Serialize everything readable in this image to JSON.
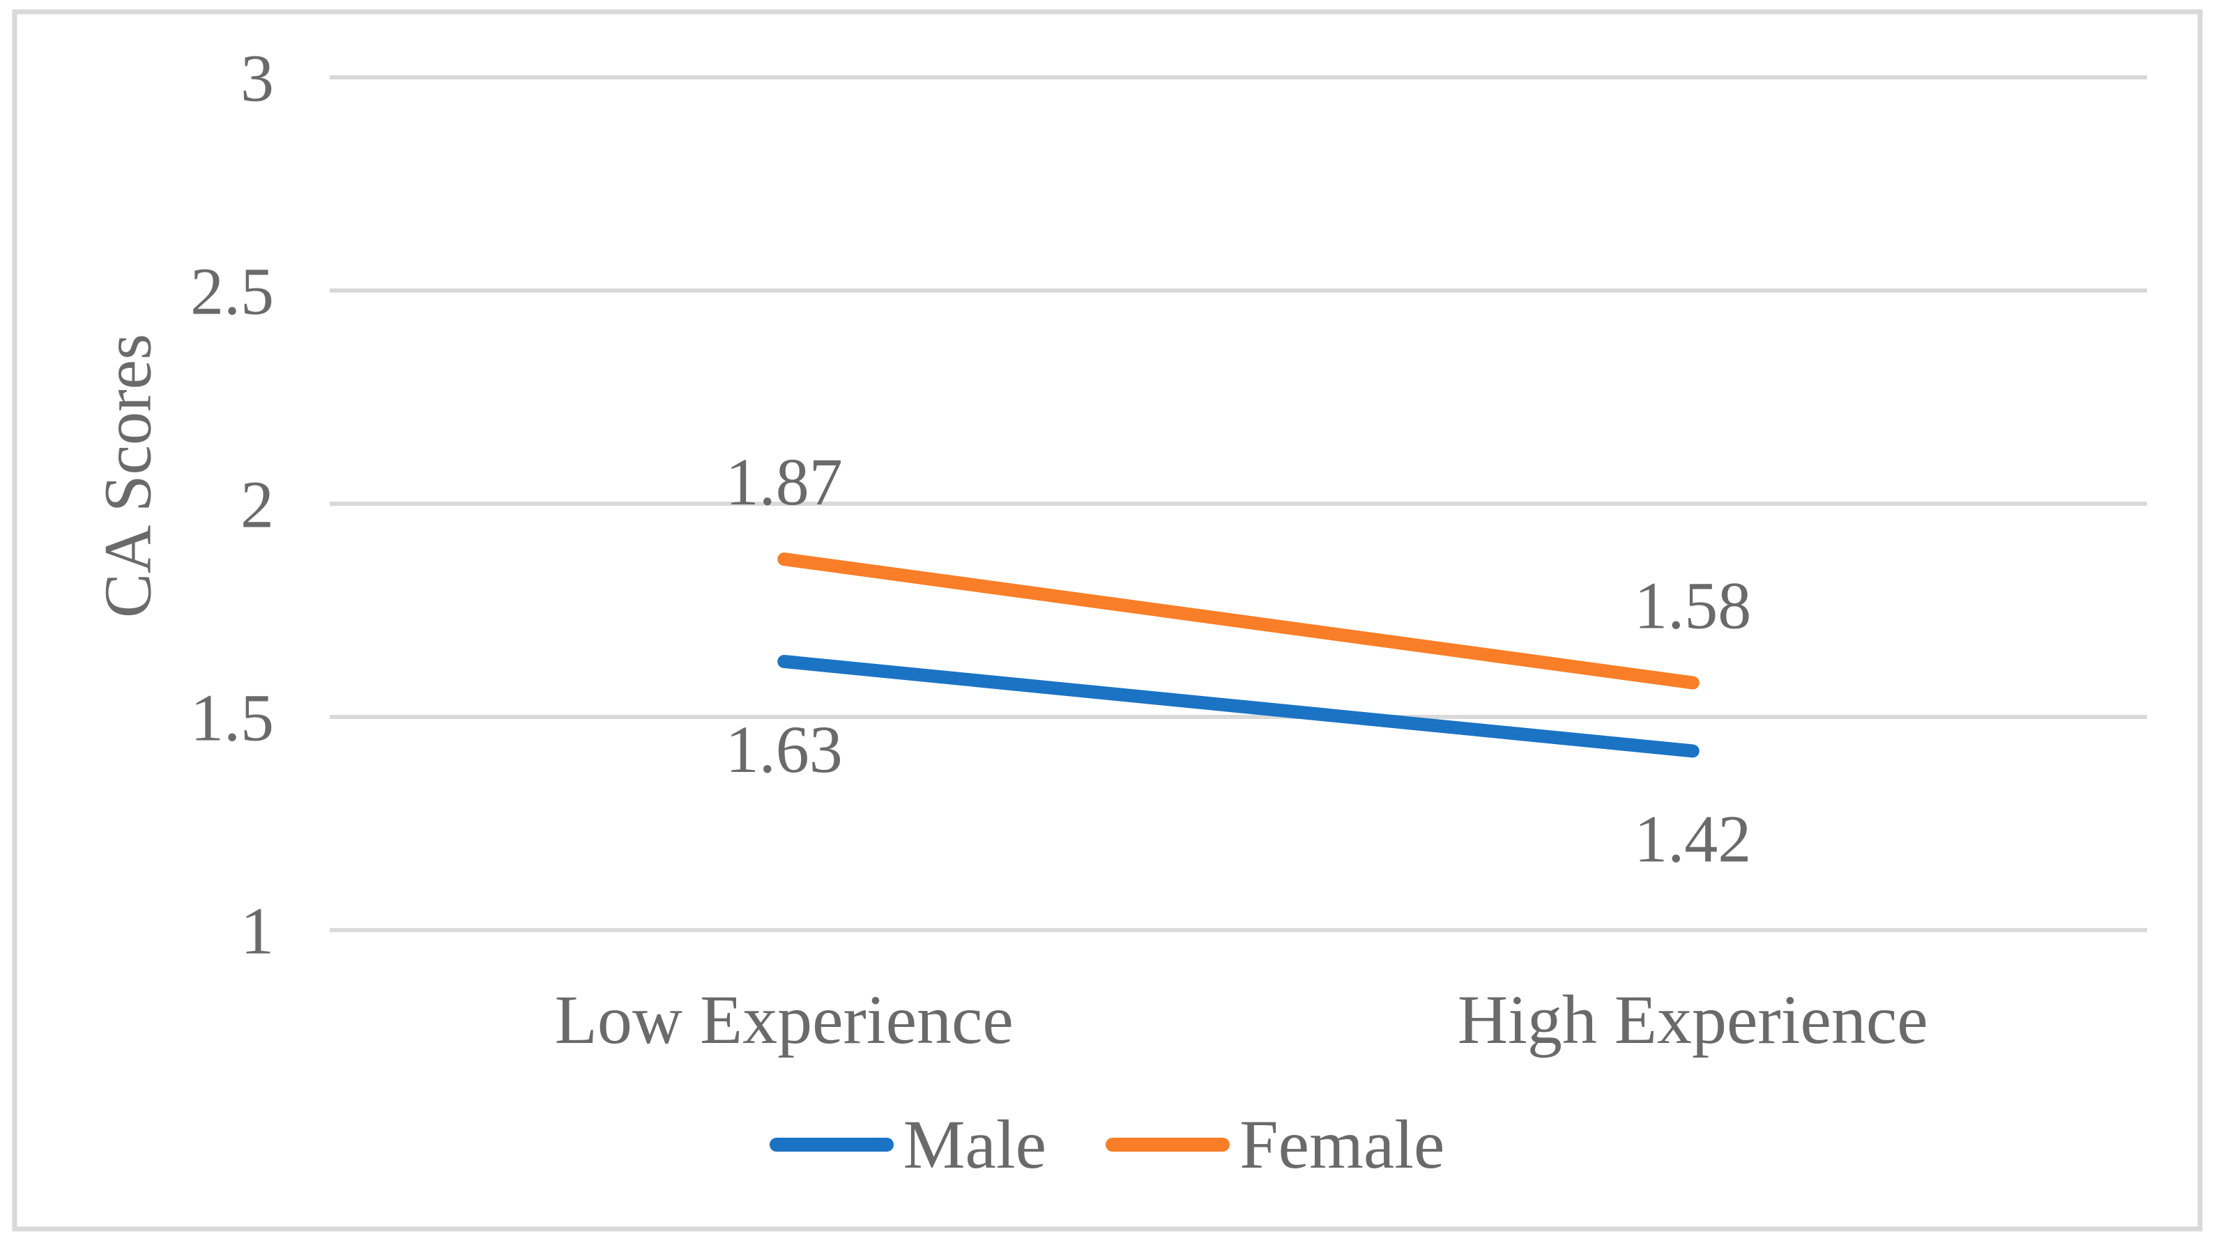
{
  "chart_data": {
    "type": "line",
    "categories": [
      "Low Experience",
      "High Experience"
    ],
    "series": [
      {
        "name": "Male",
        "values": [
          1.63,
          1.42
        ],
        "labels": [
          "1.63",
          "1.42"
        ],
        "color": "#1B73C4",
        "label_position": "below"
      },
      {
        "name": "Female",
        "values": [
          1.87,
          1.58
        ],
        "labels": [
          "1.87",
          "1.58"
        ],
        "color": "#F97E27",
        "label_position": "above"
      }
    ],
    "title": "",
    "xlabel": "",
    "ylabel": "CA Scores",
    "ylim": [
      1,
      3
    ],
    "yticks": [
      {
        "value": 3,
        "label": "3"
      },
      {
        "value": 2.5,
        "label": "2.5"
      },
      {
        "value": 2,
        "label": "2"
      },
      {
        "value": 1.5,
        "label": "1.5"
      },
      {
        "value": 1,
        "label": "1"
      }
    ],
    "grid": true,
    "legend_position": "bottom",
    "legend_items": [
      "Male",
      "Female"
    ],
    "text_color": "#6A6A6A",
    "gridline_color": "#D9D9D9",
    "border_color": "#D9D9D9",
    "background_color": "#FFFFFF"
  }
}
